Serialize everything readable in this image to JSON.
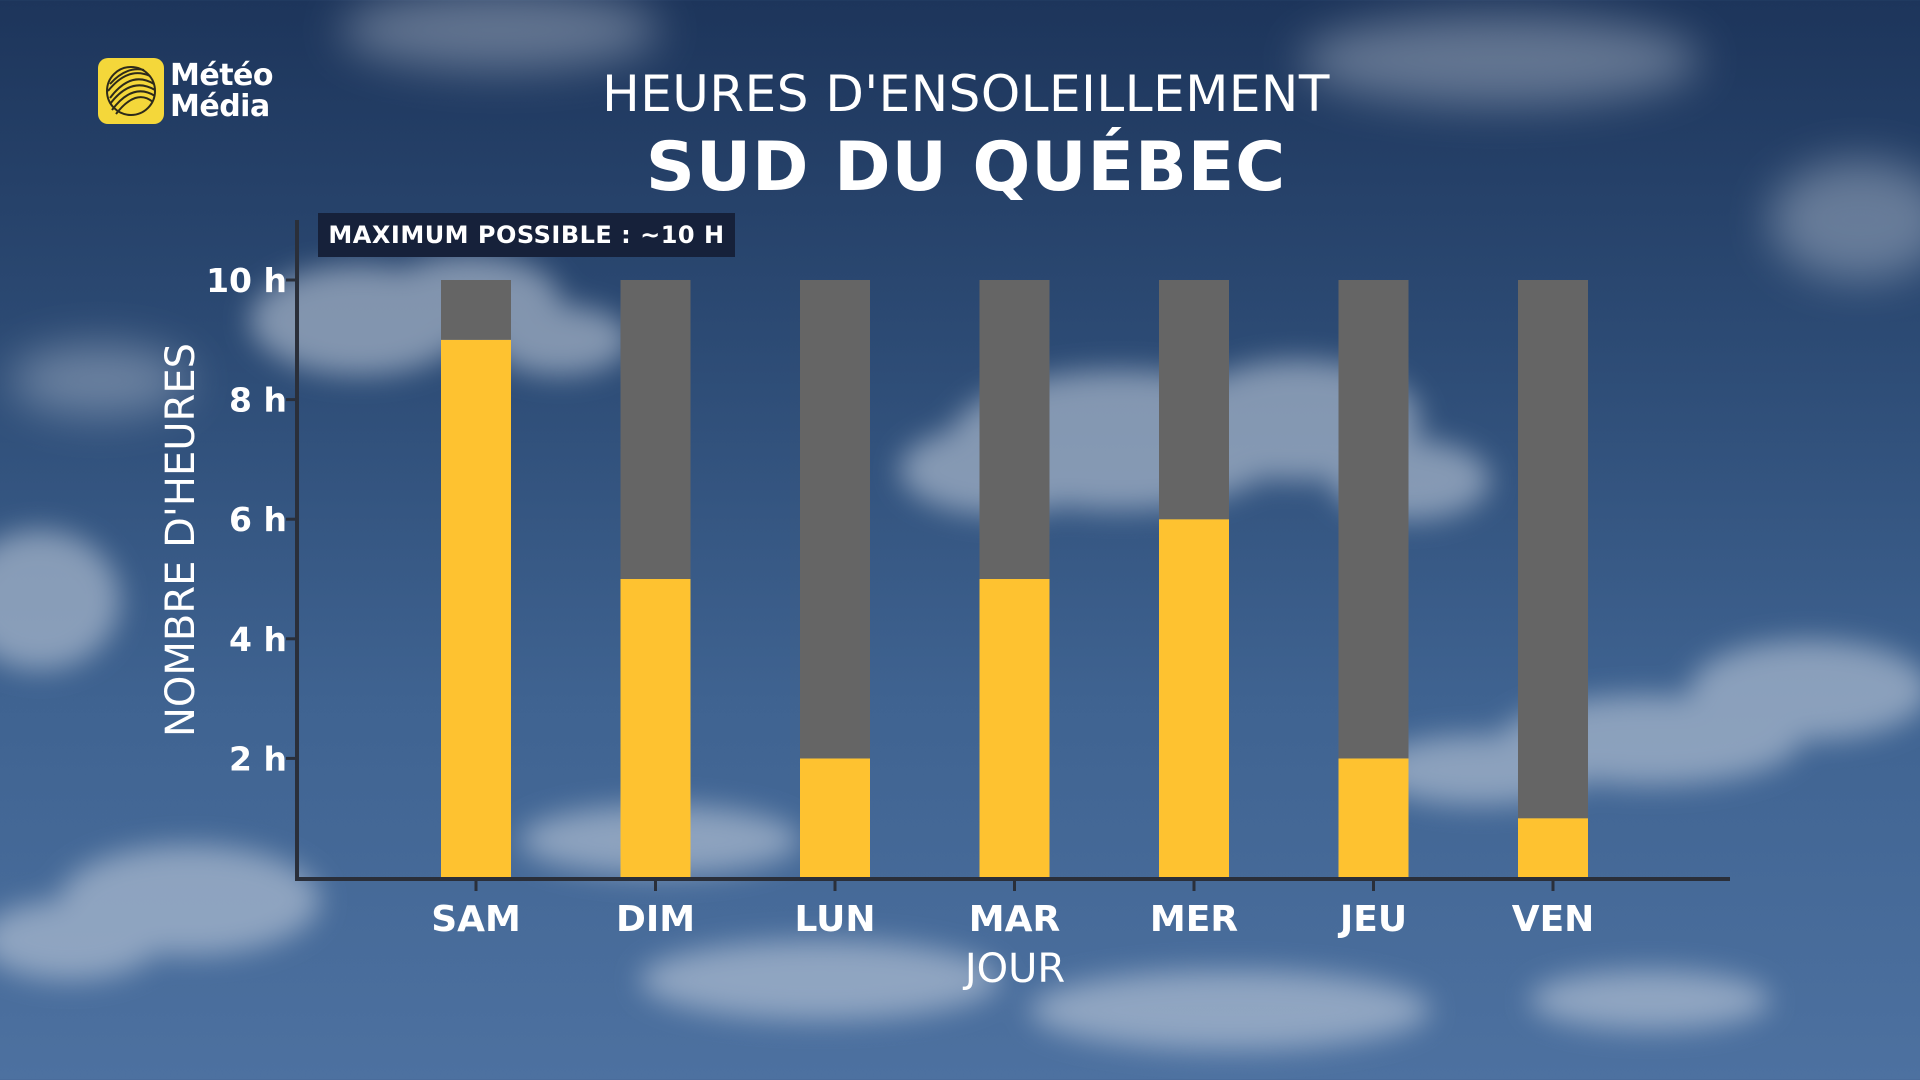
{
  "brand": {
    "line1": "Météo",
    "line2": "Média",
    "logo_color": "#f4d73a"
  },
  "header": {
    "title": "HEURES D'ENSOLEILLEMENT",
    "subtitle": "SUD DU QUÉBEC"
  },
  "badge": {
    "text": "MAXIMUM POSSIBLE : ~10 H"
  },
  "colors": {
    "sunshine": "#fec230",
    "remaining": "#656565",
    "axis": "#2a2f3a",
    "badge_bg": "#16213a"
  },
  "chart_data": {
    "type": "bar",
    "stacked": true,
    "xlabel": "JOUR",
    "ylabel": "NOMBRE D'HEURES",
    "categories": [
      "SAM",
      "DIM",
      "LUN",
      "MAR",
      "MER",
      "JEU",
      "VEN"
    ],
    "series": [
      {
        "values": [
          9,
          5,
          2,
          5,
          6,
          2,
          1
        ],
        "color": "#fec230"
      },
      {
        "values": [
          1,
          5,
          8,
          5,
          4,
          8,
          9
        ],
        "color": "#656565"
      }
    ],
    "max_possible": 10,
    "ylim": [
      0,
      10
    ],
    "yticks": [
      2,
      4,
      6,
      8,
      10
    ],
    "ytick_labels": [
      "2 h",
      "4 h",
      "6 h",
      "8 h",
      "10 h"
    ],
    "grid": false,
    "legend": "none"
  }
}
